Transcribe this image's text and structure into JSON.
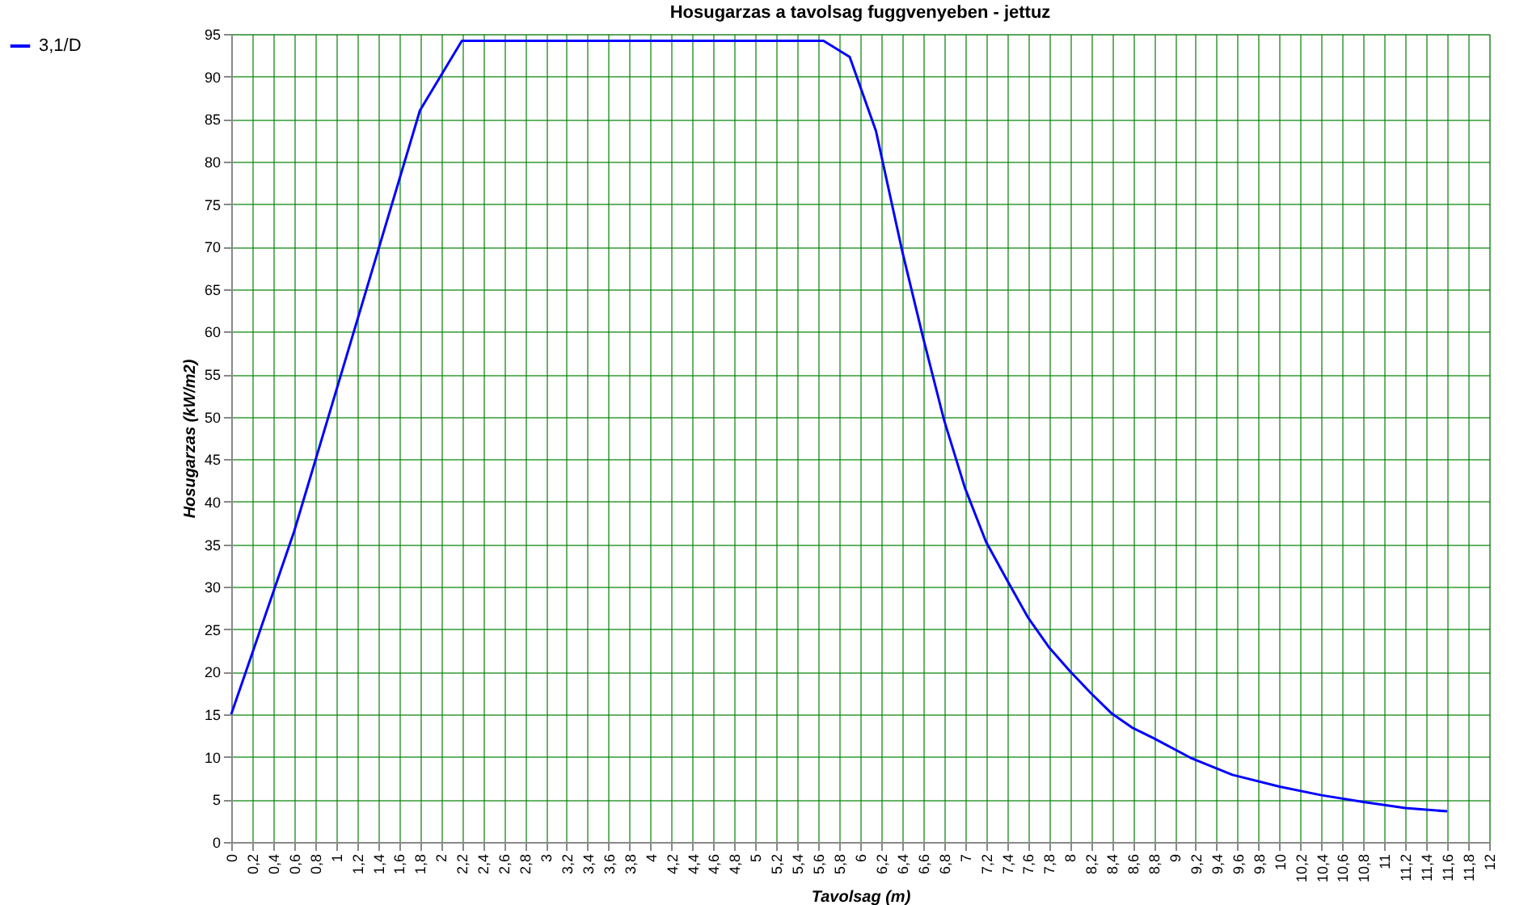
{
  "chart_data": {
    "type": "line",
    "title": "Hosugarzas a tavolsag fuggvenyeben - jettuz",
    "xlabel": "Tavolsag (m)",
    "ylabel": "Hosugarzas (kW/m2)",
    "series": [
      {
        "name": "3,1/D",
        "color": "#0000ff",
        "x": [
          0,
          0.6,
          1.8,
          2.2,
          5.65,
          5.9,
          6.15,
          6.4,
          6.6,
          6.8,
          7.0,
          7.2,
          7.4,
          7.6,
          7.8,
          8.0,
          8.2,
          8.4,
          8.6,
          8.8,
          9.15,
          9.55,
          10.0,
          10.4,
          10.8,
          11.2,
          11.6
        ],
        "values": [
          15,
          36.5,
          86,
          94.2,
          94.2,
          92.3,
          83.6,
          69.5,
          59.3,
          49.6,
          41.6,
          35.3,
          30.8,
          26.4,
          22.9,
          20.1,
          17.5,
          15.1,
          13.4,
          12.2,
          9.9,
          7.9,
          6.5,
          5.5,
          4.7,
          4.0,
          3.6
        ]
      }
    ],
    "xlim": [
      0,
      12
    ],
    "ylim": [
      0,
      95
    ],
    "xticks": [
      0,
      {
        "value": 0.2,
        "label": "0,2"
      },
      {
        "value": 0.4,
        "label": "0,4"
      },
      {
        "value": 0.6,
        "label": "0,6"
      },
      {
        "value": 0.8,
        "label": "0,8"
      },
      1,
      {
        "value": 1.2,
        "label": "1,2"
      },
      {
        "value": 1.4,
        "label": "1,4"
      },
      {
        "value": 1.6,
        "label": "1,6"
      },
      {
        "value": 1.8,
        "label": "1,8"
      },
      2,
      {
        "value": 2.2,
        "label": "2,2"
      },
      {
        "value": 2.4,
        "label": "2,4"
      },
      {
        "value": 2.6,
        "label": "2,6"
      },
      {
        "value": 2.8,
        "label": "2,8"
      },
      3,
      {
        "value": 3.2,
        "label": "3,2"
      },
      {
        "value": 3.4,
        "label": "3,4"
      },
      {
        "value": 3.6,
        "label": "3,6"
      },
      {
        "value": 3.8,
        "label": "3,8"
      },
      4,
      {
        "value": 4.2,
        "label": "4,2"
      },
      {
        "value": 4.4,
        "label": "4,4"
      },
      {
        "value": 4.6,
        "label": "4,6"
      },
      {
        "value": 4.8,
        "label": "4,8"
      },
      5,
      {
        "value": 5.2,
        "label": "5,2"
      },
      {
        "value": 5.4,
        "label": "5,4"
      },
      {
        "value": 5.6,
        "label": "5,6"
      },
      {
        "value": 5.8,
        "label": "5,8"
      },
      6,
      {
        "value": 6.2,
        "label": "6,2"
      },
      {
        "value": 6.4,
        "label": "6,4"
      },
      {
        "value": 6.6,
        "label": "6,6"
      },
      {
        "value": 6.8,
        "label": "6,8"
      },
      7,
      {
        "value": 7.2,
        "label": "7,2"
      },
      {
        "value": 7.4,
        "label": "7,4"
      },
      {
        "value": 7.6,
        "label": "7,6"
      },
      {
        "value": 7.8,
        "label": "7,8"
      },
      8,
      {
        "value": 8.2,
        "label": "8,2"
      },
      {
        "value": 8.4,
        "label": "8,4"
      },
      {
        "value": 8.6,
        "label": "8,6"
      },
      {
        "value": 8.8,
        "label": "8,8"
      },
      9,
      {
        "value": 9.2,
        "label": "9,2"
      },
      {
        "value": 9.4,
        "label": "9,4"
      },
      {
        "value": 9.6,
        "label": "9,6"
      },
      {
        "value": 9.8,
        "label": "9,8"
      },
      10,
      {
        "value": 10.2,
        "label": "10,2"
      },
      {
        "value": 10.4,
        "label": "10,4"
      },
      {
        "value": 10.6,
        "label": "10,6"
      },
      {
        "value": 10.8,
        "label": "10,8"
      },
      11,
      {
        "value": 11.2,
        "label": "11,2"
      },
      {
        "value": 11.4,
        "label": "11,4"
      },
      {
        "value": 11.6,
        "label": "11,6"
      },
      {
        "value": 11.8,
        "label": "11,8"
      },
      12
    ],
    "yticks": [
      0,
      5,
      10,
      15,
      20,
      25,
      30,
      35,
      40,
      45,
      50,
      55,
      60,
      65,
      70,
      75,
      80,
      85,
      90,
      95
    ],
    "grid": true,
    "legend": "left",
    "marker": "none",
    "line_style": "solid"
  }
}
